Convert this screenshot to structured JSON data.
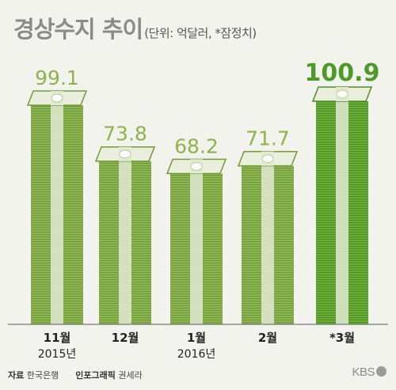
{
  "title": {
    "main": "경상수지 추이",
    "sub": "(단위: 억달러, *잠정치)"
  },
  "chart_data": {
    "type": "bar",
    "title": "경상수지 추이",
    "unit": "억달러",
    "note": "*잠정치",
    "categories": [
      "11월",
      "12월",
      "1월",
      "2월",
      "*3월"
    ],
    "year_labels": [
      "2015년",
      "",
      "2016년",
      "",
      ""
    ],
    "values": [
      99.1,
      73.8,
      68.2,
      71.7,
      100.9
    ],
    "value_labels": [
      "99.1",
      "73.8",
      "68.2",
      "71.7",
      "100.9"
    ],
    "highlight_index": 4,
    "ylim": [
      0,
      100.9
    ],
    "grid": false,
    "colors": {
      "bar": "#8db452",
      "bar_highlight": "#5fa830",
      "label": "#8fb24d",
      "label_highlight": "#4e9a27",
      "band": "#e2ead3"
    }
  },
  "footer": {
    "source_label": "자료",
    "source": "한국은행",
    "graphic_label": "인포그래픽",
    "author": "권세라",
    "logo": "KBS"
  }
}
